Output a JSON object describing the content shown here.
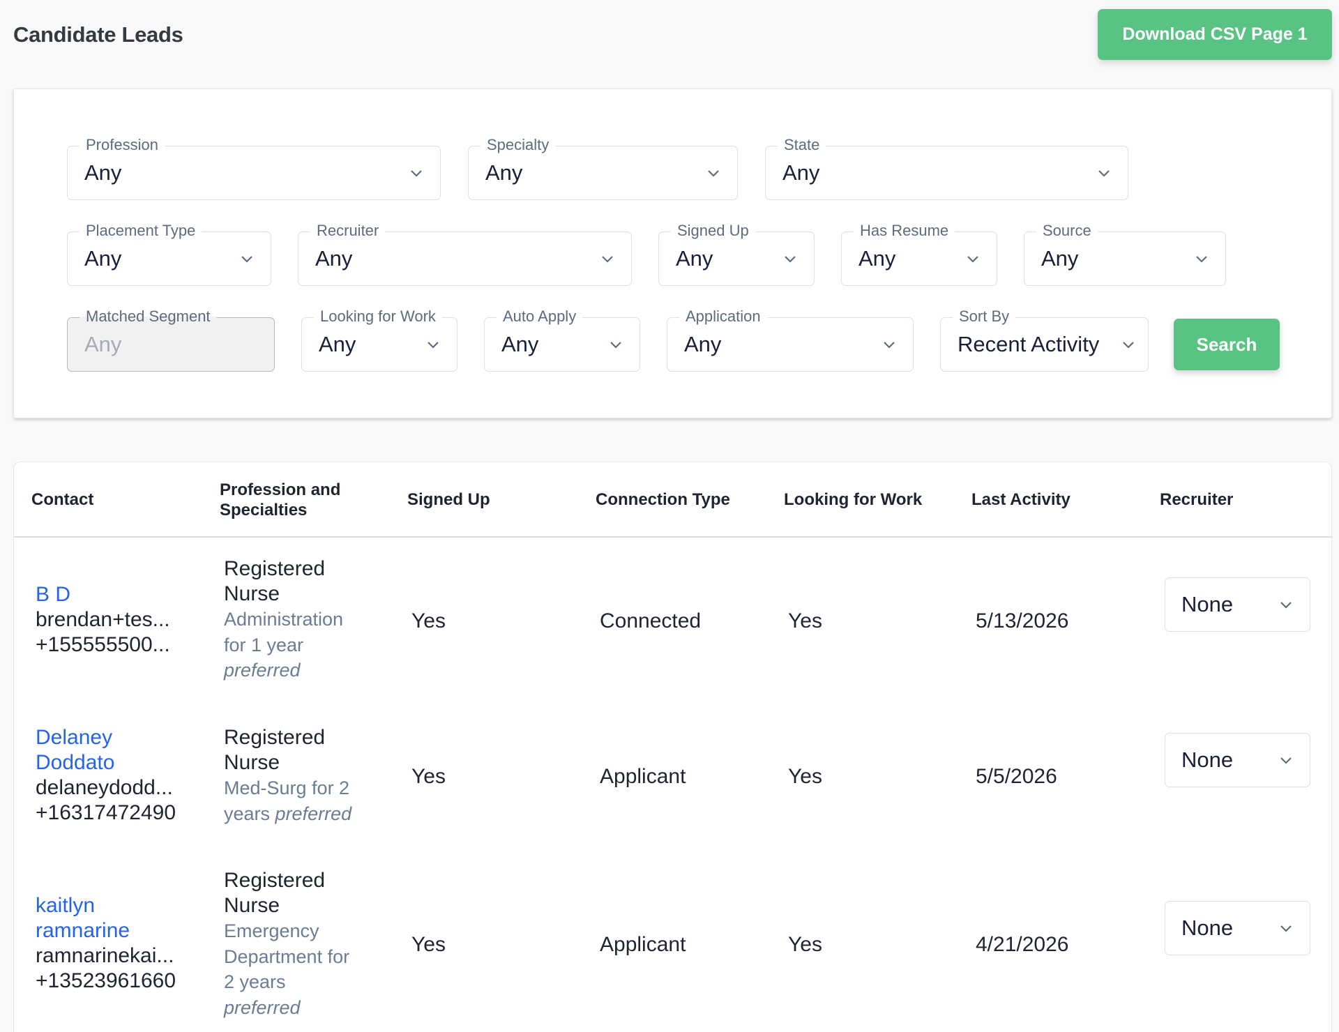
{
  "page": {
    "title": "Candidate Leads"
  },
  "toolbar": {
    "download_label": "Download CSV Page 1"
  },
  "filters": {
    "profession": {
      "label": "Profession",
      "value": "Any"
    },
    "specialty": {
      "label": "Specialty",
      "value": "Any"
    },
    "state": {
      "label": "State",
      "value": "Any"
    },
    "placement_type": {
      "label": "Placement Type",
      "value": "Any"
    },
    "recruiter": {
      "label": "Recruiter",
      "value": "Any"
    },
    "signed_up": {
      "label": "Signed Up",
      "value": "Any"
    },
    "has_resume": {
      "label": "Has Resume",
      "value": "Any"
    },
    "source": {
      "label": "Source",
      "value": "Any"
    },
    "matched_segment": {
      "label": "Matched Segment",
      "placeholder": "Any"
    },
    "looking_for_work": {
      "label": "Looking for Work",
      "value": "Any"
    },
    "auto_apply": {
      "label": "Auto Apply",
      "value": "Any"
    },
    "application": {
      "label": "Application",
      "value": "Any"
    },
    "sort_by": {
      "label": "Sort By",
      "value": "Recent Activity"
    },
    "search_label": "Search"
  },
  "table": {
    "headers": {
      "contact": "Contact",
      "profession_line1": "Profession and",
      "profession_line2": "Specialties",
      "signed_up": "Signed Up",
      "connection_type": "Connection Type",
      "looking_for_work": "Looking for Work",
      "last_activity": "Last Activity",
      "recruiter": "Recruiter"
    },
    "rows": [
      {
        "name": "B D",
        "email": "brendan+tes...",
        "phone": "+155555500...",
        "profession_line1": "Registered",
        "profession_line2": "Nurse",
        "spec_line1": "Administration",
        "spec_line2": "for 1 year",
        "spec_pref": "preferred",
        "signed_up": "Yes",
        "connection_type": "Connected",
        "looking_for_work": "Yes",
        "last_activity": "5/13/2026",
        "recruiter": "None"
      },
      {
        "name_line1": "Delaney",
        "name_line2": "Doddato",
        "email": "delaneydodd...",
        "phone": "+16317472490",
        "profession_line1": "Registered",
        "profession_line2": "Nurse",
        "spec_line1": "Med-Surg for 2",
        "spec_line2": "years",
        "spec_pref": "preferred",
        "signed_up": "Yes",
        "connection_type": "Applicant",
        "looking_for_work": "Yes",
        "last_activity": "5/5/2026",
        "recruiter": "None"
      },
      {
        "name_line1": "kaitlyn",
        "name_line2": "ramnarine",
        "email": "ramnarinekai...",
        "phone": "+13523961660",
        "profession_line1": "Registered",
        "profession_line2": "Nurse",
        "spec_line1": "Emergency",
        "spec_line2": "Department for",
        "spec_line3": "2 years",
        "spec_pref": "preferred",
        "signed_up": "Yes",
        "connection_type": "Applicant",
        "looking_for_work": "Yes",
        "last_activity": "4/21/2026",
        "recruiter": "None"
      }
    ]
  },
  "icons": {
    "dropdown": "chevron-down-icon"
  },
  "colors": {
    "accent": "#58c383",
    "link": "#2563eb",
    "muted": "#6b7c93"
  }
}
